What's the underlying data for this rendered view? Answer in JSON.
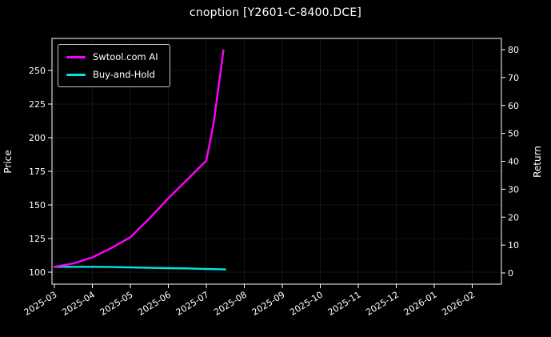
{
  "chart": {
    "title": "cnoption [Y2601-C-8400.DCE]"
  },
  "chart_data": {
    "type": "line",
    "title": "cnoption [Y2601-C-8400.DCE]",
    "ylabel": "Price",
    "ylabel_right": "Return",
    "x_tick_labels": [
      "2025-03",
      "2025-04",
      "2025-05",
      "2025-06",
      "2025-07",
      "2025-08",
      "2025-09",
      "2025-10",
      "2025-11",
      "2025-12",
      "2026-01",
      "2026-02"
    ],
    "left_ticks": [
      100,
      125,
      150,
      175,
      200,
      225,
      250
    ],
    "right_ticks": [
      0,
      10,
      20,
      30,
      40,
      50,
      60,
      70,
      80
    ],
    "left_axis_range": [
      91,
      274
    ],
    "right_axis_range": [
      -4,
      84
    ],
    "grid": false,
    "legend_position": "upper left",
    "background_color": "#000000",
    "text_color": "#ffffff",
    "series": [
      {
        "name": "Swtool.com AI",
        "color": "#ff00ff",
        "axis": "left",
        "x": [
          0,
          0.5,
          1,
          1.5,
          2,
          2.5,
          3,
          3.5,
          4,
          4.2,
          4.45
        ],
        "y": [
          104,
          106.5,
          111,
          118,
          126,
          140,
          155,
          169,
          183,
          212,
          265
        ]
      },
      {
        "name": "Buy-and-Hold",
        "color": "#00e5e5",
        "axis": "left",
        "x": [
          0,
          0.5,
          1,
          1.5,
          2,
          2.5,
          3,
          3.5,
          4,
          4.5
        ],
        "y": [
          104,
          104,
          104,
          103.8,
          103.5,
          103.2,
          103,
          102.8,
          102.4,
          102
        ]
      }
    ]
  }
}
